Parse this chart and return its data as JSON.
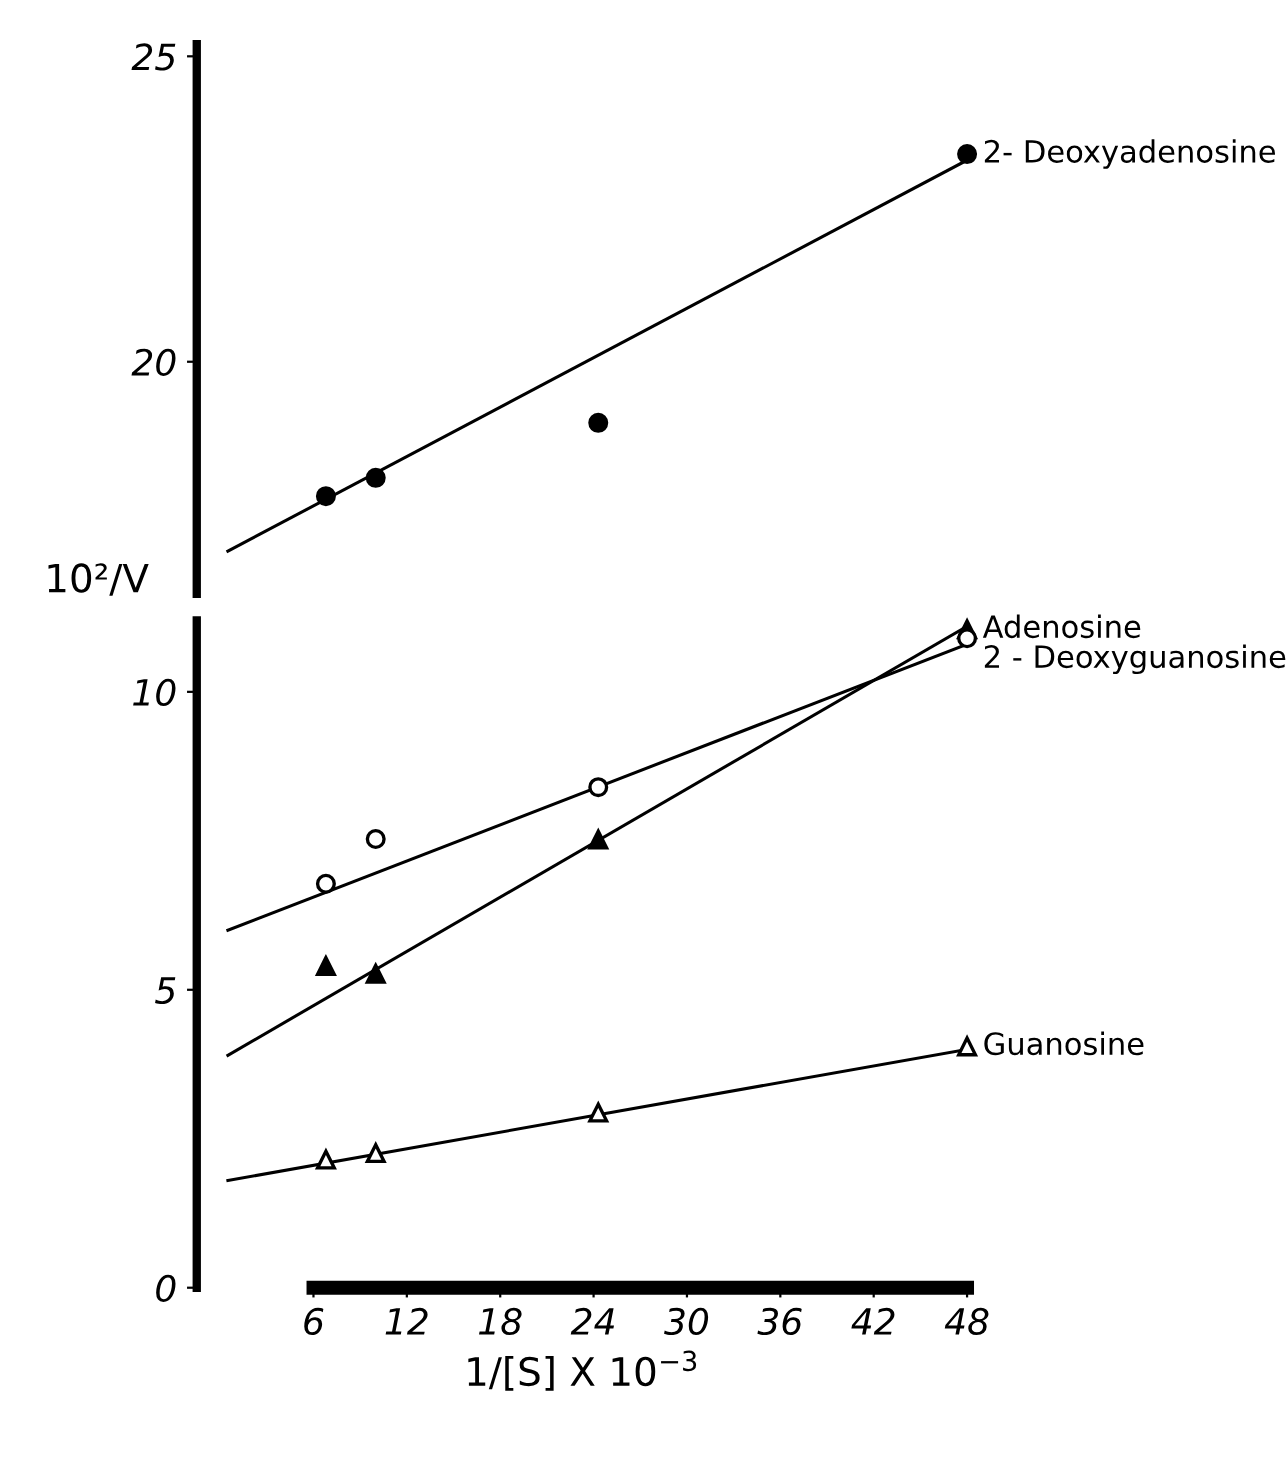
{
  "chart_data": [
    {
      "type": "scatter",
      "ylim": [
        16.2,
        25.2
      ],
      "yticks": [
        20,
        25
      ],
      "xlim": [
        -1.5,
        48
      ],
      "tick_labels": "y",
      "grid": false,
      "legend": false,
      "series": [
        {
          "name": "2- Deoxyadenosine",
          "color": "#000000",
          "marker": "circle",
          "x": [
            6.8,
            10,
            24.3,
            48
          ],
          "values": [
            17.8,
            18.1,
            19.0,
            23.4
          ]
        },
        {
          "type": "line",
          "color": "#000000",
          "marker": "none",
          "line_style": "solid",
          "x": [
            0.5,
            48
          ],
          "values": [
            16.9,
            23.3
          ]
        }
      ]
    },
    {
      "type": "scatter",
      "ylim": [
        0,
        11.2
      ],
      "yticks": [
        0,
        5,
        10
      ],
      "xlim": [
        -1.5,
        48
      ],
      "xticks": [
        6,
        12,
        18,
        24,
        30,
        36,
        42,
        48
      ],
      "grid": false,
      "legend": false,
      "ylabel": "10²/V",
      "xlabel": "1/[S] X 10$^{−3}$",
      "series": [
        {
          "name": "Adenosine",
          "color": "#000000",
          "marker": "triangle",
          "x": [
            6.8,
            10,
            24.3,
            48
          ],
          "values": [
            5.4,
            5.27,
            7.52,
            11.05
          ]
        },
        {
          "name": "2 - Deoxyguanosine",
          "color": "#ffffff",
          "marker": "circle",
          "x": [
            6.8,
            10,
            24.3,
            48
          ],
          "values": [
            6.78,
            7.53,
            8.4,
            10.9
          ]
        },
        {
          "name": "Guanosine",
          "color": "#ffffff",
          "marker": "triangle",
          "x": [
            6.8,
            10,
            24.3,
            48
          ],
          "values": [
            2.15,
            2.26,
            2.94,
            4.05
          ]
        },
        {
          "type": "line",
          "color": "#000000",
          "marker": "none",
          "line_style": "solid",
          "x": [
            0.5,
            48
          ],
          "values": [
            3.9,
            11.1
          ]
        },
        {
          "type": "line",
          "color": "#000000",
          "marker": "none",
          "line_style": "solid",
          "x": [
            0.5,
            48
          ],
          "values": [
            6.0,
            10.8
          ]
        },
        {
          "type": "line",
          "color": "#000000",
          "marker": "none",
          "line_style": "solid",
          "x": [
            0.5,
            48
          ],
          "values": [
            1.8,
            4.0
          ]
        }
      ]
    }
  ]
}
